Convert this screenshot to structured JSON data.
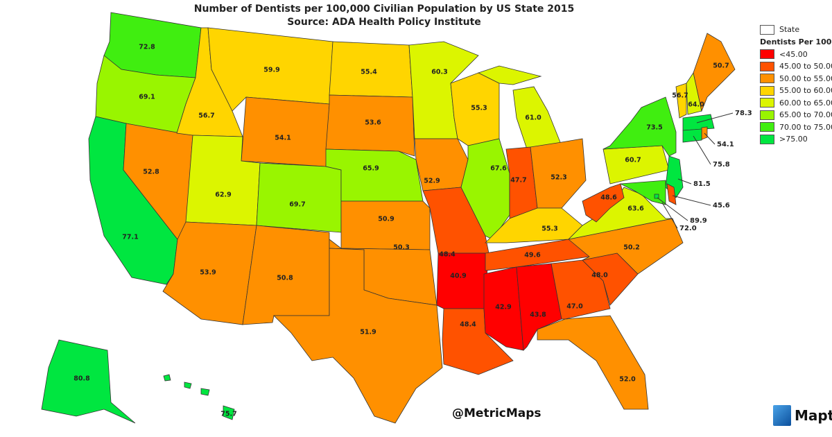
{
  "title": {
    "line1": "Number of Dentists per 100,000 Civilian Population by US State 2015",
    "line2": "Source:  ADA Health Policy Institute"
  },
  "legend": {
    "state_label": "State",
    "title": "Dentists Per 100",
    "bins": [
      {
        "label": "<45.00",
        "min": 0,
        "max": 45,
        "color": "#ff0000"
      },
      {
        "label": "45.00 to 50.00",
        "min": 45,
        "max": 50,
        "color": "#ff5200"
      },
      {
        "label": "50.00 to 55.00",
        "min": 50,
        "max": 55,
        "color": "#ff9000"
      },
      {
        "label": "55.00 to 60.00",
        "min": 55,
        "max": 60,
        "color": "#ffd500"
      },
      {
        "label": "60.00 to 65.00",
        "min": 60,
        "max": 65,
        "color": "#dcf500"
      },
      {
        "label": "65.00 to 70.00",
        "min": 65,
        "max": 70,
        "color": "#99f500"
      },
      {
        "label": "70.00 to 75.00",
        "min": 70,
        "max": 75,
        "color": "#40ee10"
      },
      {
        "label": ">75.00",
        "min": 75,
        "max": 999,
        "color": "#00e640"
      }
    ]
  },
  "states": {
    "WA": "72.8",
    "OR": "69.1",
    "CA": "77.1",
    "NV": "52.8",
    "ID": "56.7",
    "MT": "59.9",
    "WY": "54.1",
    "UT": "62.9",
    "CO": "69.7",
    "AZ": "53.9",
    "NM": "50.8",
    "ND": "55.4",
    "SD": "53.6",
    "NE": "65.9",
    "KS": "50.9",
    "OK": "50.3",
    "TX": "51.9",
    "MN": "60.3",
    "IA": "52.9",
    "MO": "48.4",
    "AR": "40.9",
    "LA": "48.4",
    "WI": "55.3",
    "IL": "67.6",
    "MI": "61.0",
    "IN": "47.7",
    "OH": "52.3",
    "KY": "55.3",
    "TN": "49.6",
    "MS": "42.9",
    "AL": "43.8",
    "GA": "47.0",
    "FL": "52.0",
    "SC": "48.0",
    "NC": "50.2",
    "VA": "63.6",
    "WV": "48.6",
    "PA": "60.7",
    "NY": "73.5",
    "VT": "56.7",
    "NH": "64.0",
    "ME": "50.7",
    "MA": "78.3",
    "RI": "54.1",
    "CT": "75.8",
    "NJ": "81.5",
    "DE": "45.6",
    "MD": "72.0",
    "DC": "89.9",
    "AK": "80.8",
    "HI": "75.7"
  },
  "watermark": "@MetricMaps",
  "logo": {
    "text": "Mapti"
  }
}
